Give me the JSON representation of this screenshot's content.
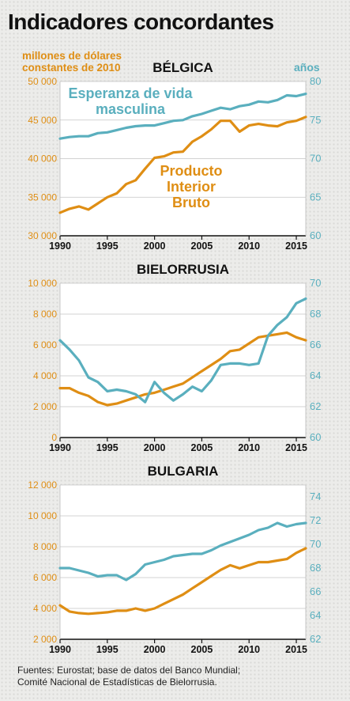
{
  "title": "Indicadores concordantes",
  "source_lines": [
    "Fuentes: Eurostat; base de datos del Banco Mundial;",
    "Comité Nacional de Estadísticas de Bielorrusia."
  ],
  "colors": {
    "gdp": "#df8e14",
    "life": "#5aafbe",
    "text": "#111111"
  },
  "chart_data": [
    {
      "type": "line",
      "title": "BÉLGICA",
      "left_axis_label": [
        "millones de dólares",
        "constantes de 2010"
      ],
      "right_axis_label": "años",
      "x_ticks": [
        1990,
        1995,
        2000,
        2005,
        2010,
        2015
      ],
      "x_tick_labels": [
        "1990",
        "1995",
        "2000",
        "2005",
        "2010",
        "2015"
      ],
      "y_left_ticks": [
        30000,
        35000,
        40000,
        45000,
        50000
      ],
      "y_left_tick_labels": [
        "30 000",
        "35 000",
        "40 000",
        "45 000",
        "50 000"
      ],
      "y_right_ticks": [
        60,
        65,
        70,
        75,
        80
      ],
      "y_right_tick_labels": [
        "60",
        "65",
        "70",
        "75",
        "80"
      ],
      "xlim": [
        1990,
        2016
      ],
      "y_left_lim": [
        30000,
        50000
      ],
      "y_right_lim": [
        60,
        80
      ],
      "series": [
        {
          "name": "Producto Interior Bruto",
          "label_lines": [
            "Producto",
            "Interior",
            "Bruto"
          ],
          "axis": "left",
          "x": [
            1990,
            1991,
            1992,
            1993,
            1994,
            1995,
            1996,
            1997,
            1998,
            1999,
            2000,
            2001,
            2002,
            2003,
            2004,
            2005,
            2006,
            2007,
            2008,
            2009,
            2010,
            2011,
            2012,
            2013,
            2014,
            2015,
            2016
          ],
          "values": [
            33000,
            33500,
            33800,
            33400,
            34200,
            35000,
            35500,
            36700,
            37200,
            38700,
            40100,
            40300,
            40800,
            40900,
            42200,
            42900,
            43800,
            44900,
            44900,
            43500,
            44300,
            44500,
            44300,
            44200,
            44700,
            44900,
            45400
          ]
        },
        {
          "name": "Esperanza de vida masculina",
          "label_lines": [
            "Esperanza de vida",
            "masculina"
          ],
          "axis": "right",
          "x": [
            1990,
            1991,
            1992,
            1993,
            1994,
            1995,
            1996,
            1997,
            1998,
            1999,
            2000,
            2001,
            2002,
            2003,
            2004,
            2005,
            2006,
            2007,
            2008,
            2009,
            2010,
            2011,
            2012,
            2013,
            2014,
            2015,
            2016
          ],
          "values": [
            72.6,
            72.8,
            72.9,
            72.9,
            73.3,
            73.4,
            73.7,
            74,
            74.2,
            74.3,
            74.3,
            74.6,
            74.9,
            75,
            75.5,
            75.8,
            76.2,
            76.6,
            76.4,
            76.8,
            77,
            77.4,
            77.3,
            77.6,
            78.2,
            78.1,
            78.4
          ]
        }
      ]
    },
    {
      "type": "line",
      "title": "BIELORRUSIA",
      "x_ticks": [
        1990,
        1995,
        2000,
        2005,
        2010,
        2015
      ],
      "x_tick_labels": [
        "1990",
        "1995",
        "2000",
        "2005",
        "2010",
        "2015"
      ],
      "y_left_ticks": [
        0,
        2000,
        4000,
        6000,
        8000,
        10000
      ],
      "y_left_tick_labels": [
        "0",
        "2 000",
        "4 000",
        "6 000",
        "8 000",
        "10 000"
      ],
      "y_right_ticks": [
        60,
        62,
        64,
        66,
        68,
        70
      ],
      "y_right_tick_labels": [
        "60",
        "62",
        "64",
        "66",
        "68",
        "70"
      ],
      "xlim": [
        1990,
        2016
      ],
      "y_left_lim": [
        0,
        10000
      ],
      "y_right_lim": [
        60,
        70
      ],
      "series": [
        {
          "name": "Producto Interior Bruto",
          "axis": "left",
          "x": [
            1990,
            1991,
            1992,
            1993,
            1994,
            1995,
            1996,
            1997,
            1998,
            1999,
            2000,
            2001,
            2002,
            2003,
            2004,
            2005,
            2006,
            2007,
            2008,
            2009,
            2010,
            2011,
            2012,
            2013,
            2014,
            2015,
            2016
          ],
          "values": [
            3200,
            3200,
            2900,
            2700,
            2300,
            2100,
            2200,
            2400,
            2600,
            2800,
            2900,
            3100,
            3300,
            3500,
            3900,
            4300,
            4700,
            5100,
            5600,
            5700,
            6100,
            6500,
            6600,
            6700,
            6800,
            6500,
            6300
          ]
        },
        {
          "name": "Esperanza de vida masculina",
          "axis": "right",
          "x": [
            1990,
            1991,
            1992,
            1993,
            1994,
            1995,
            1996,
            1997,
            1998,
            1999,
            2000,
            2001,
            2002,
            2003,
            2004,
            2005,
            2006,
            2007,
            2008,
            2009,
            2010,
            2011,
            2012,
            2013,
            2014,
            2015,
            2016
          ],
          "values": [
            66.3,
            65.7,
            65,
            63.9,
            63.6,
            63,
            63.1,
            63,
            62.8,
            62.3,
            63.6,
            62.9,
            62.4,
            62.8,
            63.3,
            63,
            63.7,
            64.7,
            64.8,
            64.8,
            64.7,
            64.8,
            66.6,
            67.3,
            67.8,
            68.7,
            69
          ]
        }
      ]
    },
    {
      "type": "line",
      "title": "BULGARIA",
      "x_ticks": [
        1990,
        1995,
        2000,
        2005,
        2010,
        2015
      ],
      "x_tick_labels": [
        "1990",
        "1995",
        "2000",
        "2005",
        "2010",
        "2015"
      ],
      "y_left_ticks": [
        2000,
        4000,
        6000,
        8000,
        10000,
        12000
      ],
      "y_left_tick_labels": [
        "2 000",
        "4 000",
        "6 000",
        "8 000",
        "10 000",
        "12 000"
      ],
      "y_right_ticks": [
        62,
        64,
        66,
        68,
        70,
        72,
        74
      ],
      "y_right_tick_labels": [
        "62",
        "64",
        "66",
        "68",
        "70",
        "72",
        "74"
      ],
      "xlim": [
        1990,
        2016
      ],
      "y_left_lim": [
        2000,
        12000
      ],
      "y_right_lim": [
        62,
        75
      ],
      "series": [
        {
          "name": "Producto Interior Bruto",
          "axis": "left",
          "x": [
            1990,
            1991,
            1992,
            1993,
            1994,
            1995,
            1996,
            1997,
            1998,
            1999,
            2000,
            2001,
            2002,
            2003,
            2004,
            2005,
            2006,
            2007,
            2008,
            2009,
            2010,
            2011,
            2012,
            2013,
            2014,
            2015,
            2016
          ],
          "values": [
            4200,
            3800,
            3700,
            3650,
            3700,
            3750,
            3850,
            3850,
            4000,
            3850,
            4000,
            4300,
            4600,
            4900,
            5300,
            5700,
            6100,
            6500,
            6800,
            6600,
            6800,
            7000,
            7000,
            7100,
            7200,
            7600,
            7900
          ]
        },
        {
          "name": "Esperanza de vida masculina",
          "axis": "right",
          "x": [
            1990,
            1991,
            1992,
            1993,
            1994,
            1995,
            1996,
            1997,
            1998,
            1999,
            2000,
            2001,
            2002,
            2003,
            2004,
            2005,
            2006,
            2007,
            2008,
            2009,
            2010,
            2011,
            2012,
            2013,
            2014,
            2015,
            2016
          ],
          "values": [
            68,
            68,
            67.8,
            67.6,
            67.3,
            67.4,
            67.4,
            67,
            67.5,
            68.3,
            68.5,
            68.7,
            69,
            69.1,
            69.2,
            69.2,
            69.5,
            69.9,
            70.2,
            70.5,
            70.8,
            71.2,
            71.4,
            71.8,
            71.5,
            71.7,
            71.8
          ]
        }
      ]
    }
  ]
}
